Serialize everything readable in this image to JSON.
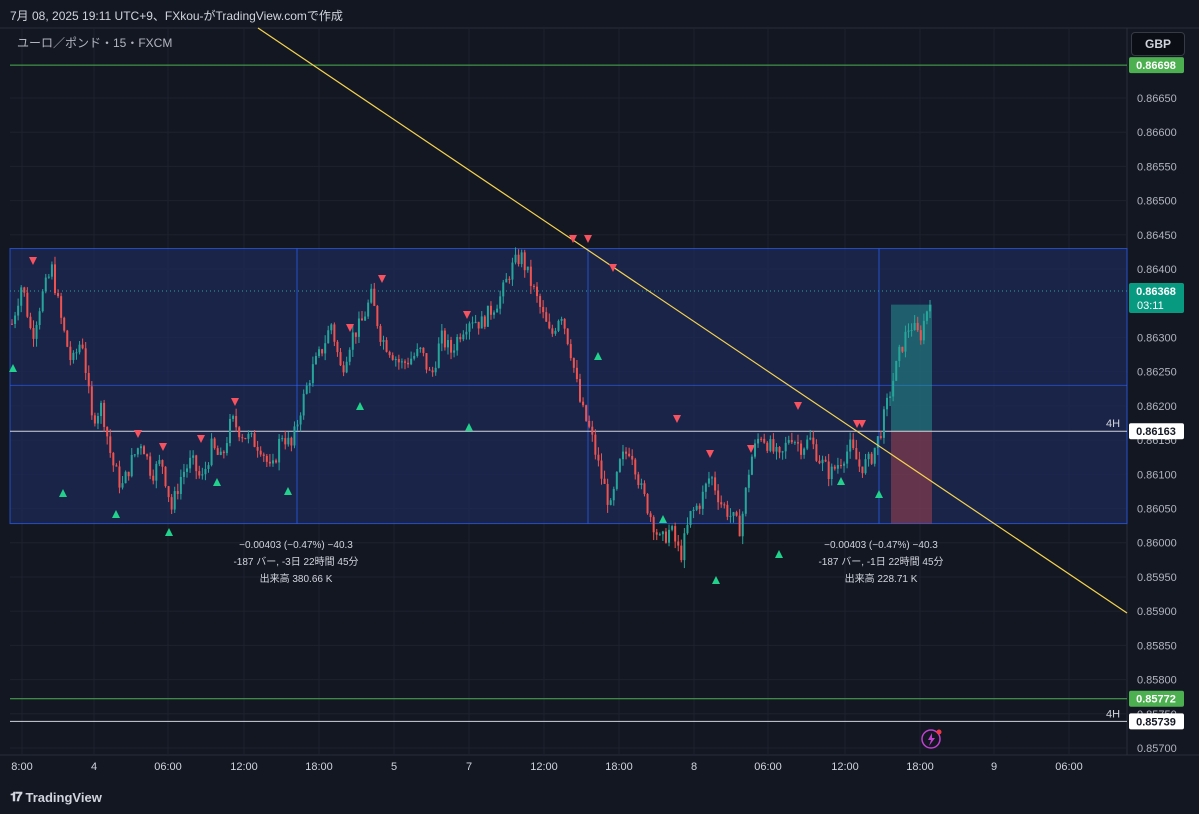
{
  "header": {
    "caption": "7月 08, 2025 19:11 UTC+9、FXkou-がTradingView.comで作成",
    "symbol": "ユーロ／ポンド・15・FXCM",
    "currency": "GBP"
  },
  "brand": {
    "name": "TradingView",
    "icon": "tradingview-logo-icon"
  },
  "colors": {
    "background": "#131722",
    "bull": "#26a69a",
    "bear": "#ef5350",
    "zone": "#1e2a57",
    "zone_border": "#2962ff",
    "trendline": "#f5d34f",
    "green_level": "#4caf50",
    "up_arrow": "#22d18b",
    "down_arrow": "#f7525f"
  },
  "chart_data": {
    "type": "candlestick",
    "symbol": "EURGBP 15m FXCM",
    "ylim": [
      0.857,
      0.867
    ],
    "y_ticks": [
      "0.86650",
      "0.86600",
      "0.86550",
      "0.86500",
      "0.86450",
      "0.86400",
      "0.86300",
      "0.86250",
      "0.86200",
      "0.86150",
      "0.86100",
      "0.86050",
      "0.86000",
      "0.85950",
      "0.85900",
      "0.85850",
      "0.85800",
      "0.85750",
      "0.85700"
    ],
    "x_ticks": [
      "8:00",
      "4",
      "06:00",
      "12:00",
      "18:00",
      "5",
      "7",
      "12:00",
      "18:00",
      "8",
      "06:00",
      "12:00",
      "18:00",
      "9",
      "06:00"
    ],
    "price_labels": [
      {
        "value": "0.86698",
        "kind": "green"
      },
      {
        "value": "0.86368",
        "sub": "03:11",
        "kind": "current"
      },
      {
        "value": "0.86163",
        "kind": "white",
        "tag": "4H"
      },
      {
        "value": "0.85772",
        "kind": "green"
      },
      {
        "value": "0.85739",
        "kind": "white",
        "tag": "4H"
      }
    ],
    "range_zone": {
      "top": 0.8643,
      "bottom": 0.86028
    },
    "mid_line": 0.8623,
    "measurements": [
      {
        "lines": [
          "−0.00403 (−0.47%) −40.3",
          "-187 バー, -3日 22時間 45分",
          "出来高 380.66 K"
        ]
      },
      {
        "lines": [
          "−0.00403 (−0.47%) −40.3",
          "-187 バー, -1日 22時間 45分",
          "出来高 228.71 K"
        ]
      }
    ],
    "trendline": {
      "from": {
        "bar": 0,
        "price": 0.86698
      },
      "to": {
        "bar": 1,
        "price": 0.859
      }
    },
    "candle_path": [
      0.8632,
      0.8638,
      0.863,
      0.8636,
      0.864,
      0.8632,
      0.8626,
      0.863,
      0.8618,
      0.862,
      0.8612,
      0.8608,
      0.8612,
      0.8615,
      0.861,
      0.8612,
      0.8605,
      0.861,
      0.8612,
      0.8609,
      0.8614,
      0.8612,
      0.8618,
      0.8616,
      0.8615,
      0.8614,
      0.861,
      0.8616,
      0.8614,
      0.862,
      0.8625,
      0.8628,
      0.8632,
      0.8625,
      0.863,
      0.8632,
      0.8636,
      0.863,
      0.8628,
      0.8626,
      0.8627,
      0.8628,
      0.8624,
      0.863,
      0.8628,
      0.8631,
      0.8633,
      0.8632,
      0.8634,
      0.8636,
      0.864,
      0.8642,
      0.8638,
      0.8634,
      0.863,
      0.8634,
      0.8628,
      0.862,
      0.8616,
      0.861,
      0.8605,
      0.8612,
      0.8614,
      0.8608,
      0.8604,
      0.86,
      0.8602,
      0.8598,
      0.8604,
      0.8606,
      0.861,
      0.8606,
      0.8604,
      0.8602,
      0.8612,
      0.8616,
      0.8614,
      0.8612,
      0.8616,
      0.8614,
      0.8615,
      0.8612,
      0.861,
      0.8612,
      0.8614,
      0.8611,
      0.8612,
      0.8616,
      0.8622,
      0.8628,
      0.8632,
      0.863,
      0.8636
    ]
  },
  "watermark": {
    "icon": "lightning-alert-icon"
  }
}
